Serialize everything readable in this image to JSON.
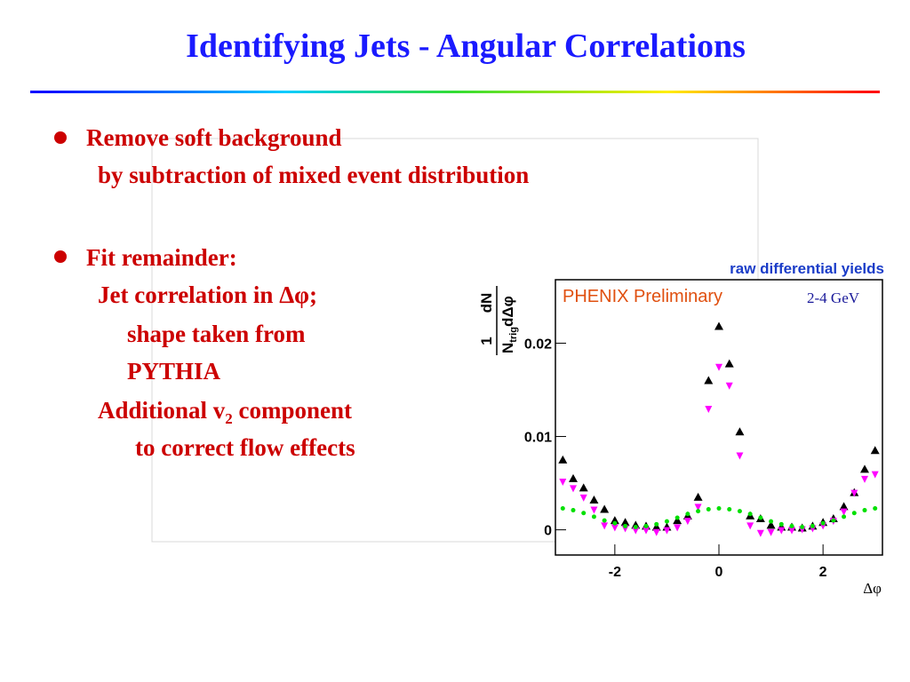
{
  "title": "Identifying Jets - Angular Correlations",
  "bullets": [
    {
      "lines": [
        "Remove soft background",
        "by subtraction of mixed event distribution"
      ]
    },
    {
      "lines": [
        "Fit remainder:",
        "Jet correlation in Δφ;",
        "shape taken from",
        "PYTHIA",
        "to correct flow effects"
      ],
      "v2_line": [
        "Additional v",
        "2",
        " component"
      ]
    }
  ],
  "chart_data": {
    "type": "scatter",
    "x": [
      -3.0,
      -2.8,
      -2.6,
      -2.4,
      -2.2,
      -2.0,
      -1.8,
      -1.6,
      -1.4,
      -1.2,
      -1.0,
      -0.8,
      -0.6,
      -0.4,
      -0.2,
      0,
      0.2,
      0.4,
      0.6,
      0.8,
      1.0,
      1.2,
      1.4,
      1.6,
      1.8,
      2.0,
      2.2,
      2.4,
      2.6,
      2.8,
      3.0
    ],
    "series": [
      {
        "color": "#000000",
        "marker": "triangle-up",
        "values": [
          0.0075,
          0.0055,
          0.0045,
          0.0032,
          0.0022,
          0.001,
          0.0008,
          0.0005,
          0.0004,
          0.0003,
          0.0003,
          0.001,
          0.0015,
          0.0035,
          0.016,
          0.0218,
          0.0178,
          0.0105,
          0.0015,
          0.0012,
          0.0005,
          0.0003,
          0.0003,
          0.0002,
          0.0004,
          0.0008,
          0.0012,
          0.0025,
          0.004,
          0.0065,
          0.0085
        ]
      },
      {
        "color": "#ff00ff",
        "marker": "triangle-down",
        "values": [
          0.0052,
          0.0045,
          0.0035,
          0.0022,
          0.0005,
          0.0003,
          0.0002,
          0.0,
          0.0,
          -0.0002,
          0.0,
          0.0003,
          0.001,
          0.0025,
          0.013,
          0.0175,
          0.0155,
          0.008,
          0.0005,
          -0.0003,
          -0.0002,
          0.0,
          0.0,
          0.0001,
          0.0002,
          0.0005,
          0.001,
          0.002,
          0.004,
          0.0055,
          0.006
        ]
      },
      {
        "color": "#00e000",
        "marker": "circle",
        "values": [
          0.0023,
          0.0021,
          0.0018,
          0.0014,
          0.001,
          0.0007,
          0.0004,
          0.0003,
          0.0004,
          0.0006,
          0.0009,
          0.0013,
          0.0017,
          0.002,
          0.0022,
          0.0023,
          0.0022,
          0.002,
          0.0017,
          0.0013,
          0.0009,
          0.0006,
          0.0004,
          0.0003,
          0.0004,
          0.0007,
          0.001,
          0.0014,
          0.0018,
          0.0021,
          0.0023
        ]
      }
    ],
    "xlim": [
      -3.1416,
      3.1416
    ],
    "ylim": [
      -0.0027,
      0.0268
    ],
    "xticks": [
      -2,
      0,
      2
    ],
    "yticks": [
      0,
      0.01,
      0.02
    ],
    "xlabel": "Δφ",
    "ylabel": {
      "numerator": [
        "1",
        "dN"
      ],
      "denominator": [
        "N",
        "trig",
        "dΔφ"
      ]
    },
    "annotations": [
      "raw differential yields",
      "PHENIX Preliminary",
      "2-4 GeV"
    ]
  }
}
